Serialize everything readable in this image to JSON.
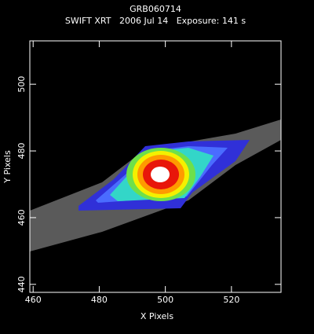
{
  "chart_data": {
    "type": "image",
    "title": "GRB060714",
    "subtitle": "SWIFT XRT   2006 Jul 14   Exposure: 141 s",
    "x_label": "X Pixels",
    "y_label": "Y Pixels",
    "xlim": [
      459,
      535
    ],
    "xticks": [
      460,
      480,
      500,
      520
    ],
    "ylim": [
      437.6,
      513
    ],
    "yticks": [
      440,
      460,
      480,
      500
    ]
  }
}
